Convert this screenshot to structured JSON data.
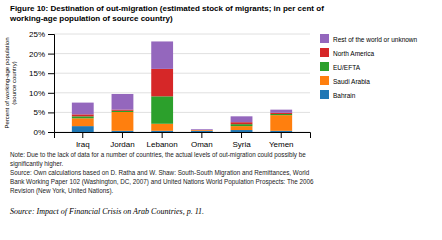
{
  "chart_data": {
    "type": "bar",
    "stacked": true,
    "title": "Figure 10: Destination of out-migration (estimated stock of migrants; in per cent of\nworking-age population of source country)",
    "y_label": "Percent of working-age population\n(source country)",
    "categories": [
      "Iraq",
      "Jordan",
      "Lebanon",
      "Oman",
      "Syria",
      "Yemen"
    ],
    "series": [
      {
        "name": "Bahrain",
        "values": [
          1.5,
          0.3,
          0.3,
          0.3,
          0.5,
          0.3
        ]
      },
      {
        "name": "Saudi Arabia",
        "values": [
          2.0,
          4.8,
          1.8,
          0.2,
          1.0,
          4.0
        ]
      },
      {
        "name": "EU/EFTA",
        "values": [
          0.5,
          0.3,
          7.0,
          0.0,
          0.5,
          0.3
        ]
      },
      {
        "name": "North America",
        "values": [
          0.5,
          0.3,
          7.0,
          0.0,
          0.5,
          0.3
        ]
      },
      {
        "name": "Rest of the world or unknown",
        "values": [
          3.0,
          4.0,
          7.0,
          0.2,
          1.5,
          0.8
        ]
      }
    ],
    "ylim": [
      0,
      25
    ],
    "yticks": [
      {
        "value": 0,
        "label": "0%"
      },
      {
        "value": 5,
        "label": "5%"
      },
      {
        "value": 10,
        "label": "10%"
      },
      {
        "value": 15,
        "label": "15%"
      },
      {
        "value": 20,
        "label": "20%"
      },
      {
        "value": 25,
        "label": "25%"
      }
    ],
    "grid": true,
    "legend": "right",
    "annotations": [
      "Note: Due to the lack of data for a number of countries, the actual levels of out-migration could possibly be",
      "significantly higher.",
      "Source: Own calculations based on D. Ratha and W. Shaw: South-South Migration and Remittances, World",
      "Bank Working Paper 102 (Washington, DC, 2007) and United Nations World Population Prospects: The 2006",
      "Revision (New York, United Nations).",
      "Source: Impact of Financial Crisis on Arab Countries, p. 11."
    ]
  }
}
